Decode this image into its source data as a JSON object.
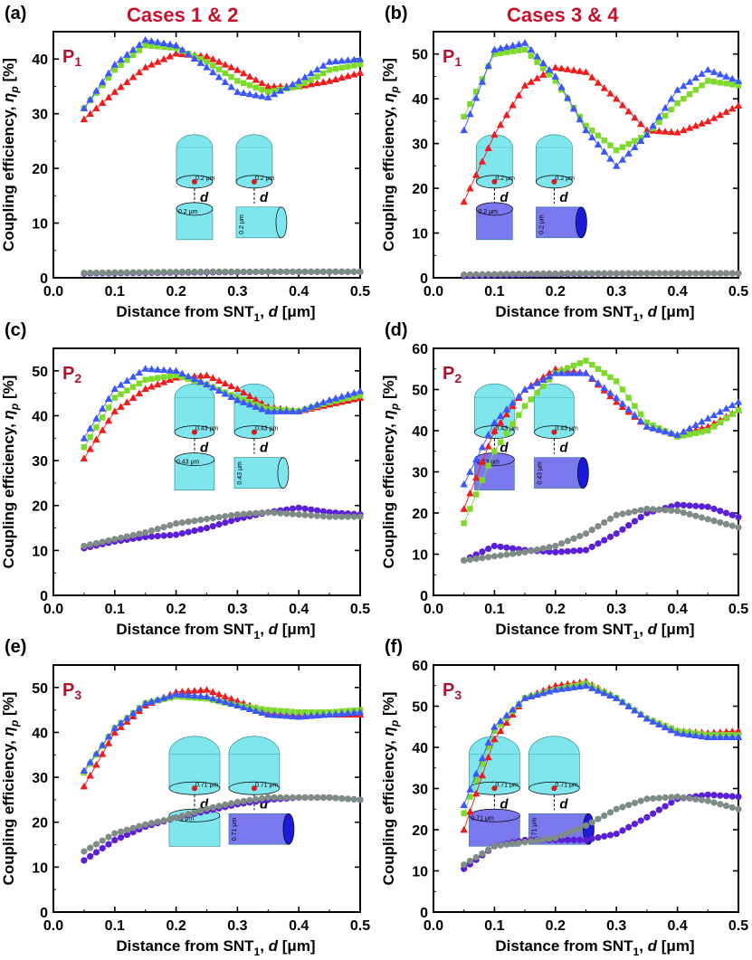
{
  "column_titles": [
    "Cases 1 & 2",
    "Cases 3 & 4"
  ],
  "colors": {
    "red": "#ee1c1c",
    "green": "#7dda2a",
    "blue": "#3a56ff",
    "purple": "#5a1fd6",
    "gray": "#7f8c86",
    "cyan": "#7fe6ee",
    "darkblue": "#1a1ad8",
    "lightblue": "#7a78ee",
    "panel_text": "#b0122c"
  },
  "chart_data": [
    {
      "panel": "(a)",
      "plabel": "P",
      "psub": "1",
      "type": "scatter",
      "xlabel": "Distance from SNT",
      "xlabel_sub": "1",
      "xlabel_var": "d",
      "xlabel_unit": "[μm]",
      "ylabel": "Coupling efficiency, ",
      "ylabel_var": "η",
      "ylabel_sub": "p",
      "ylabel_unit": " [%]",
      "xlim": [
        0.0,
        0.5
      ],
      "ylim": [
        0,
        45
      ],
      "xticks": [
        "0.0",
        "0.1",
        "0.2",
        "0.3",
        "0.4",
        "0.5"
      ],
      "yticks": [
        0,
        10,
        20,
        30,
        40
      ],
      "series": [
        {
          "name": "red",
          "marker": "triangle",
          "xs": [
            0.05,
            0.1,
            0.15,
            0.2,
            0.25,
            0.3,
            0.35,
            0.4,
            0.45,
            0.5
          ],
          "ys": [
            29,
            34,
            38.5,
            41,
            40.5,
            38,
            35,
            35,
            36,
            37.5
          ]
        },
        {
          "name": "green",
          "marker": "square",
          "xs": [
            0.05,
            0.1,
            0.15,
            0.2,
            0.25,
            0.3,
            0.35,
            0.4,
            0.45,
            0.5
          ],
          "ys": [
            31,
            38,
            42.5,
            42,
            39.5,
            36,
            34,
            35,
            38,
            39
          ]
        },
        {
          "name": "blue",
          "marker": "triangle",
          "xs": [
            0.05,
            0.1,
            0.15,
            0.2,
            0.25,
            0.3,
            0.35,
            0.4,
            0.45,
            0.5
          ],
          "ys": [
            31,
            39,
            43.5,
            42.5,
            38.5,
            34,
            33,
            36,
            39.5,
            40
          ]
        },
        {
          "name": "purple",
          "marker": "circle",
          "xs": [
            0.05,
            0.15,
            0.25,
            0.35,
            0.45,
            0.5
          ],
          "ys": [
            0.8,
            0.9,
            1.0,
            1.1,
            1.1,
            1.1
          ]
        },
        {
          "name": "gray",
          "marker": "circle",
          "xs": [
            0.05,
            0.15,
            0.25,
            0.35,
            0.45,
            0.5
          ],
          "ys": [
            0.9,
            1.0,
            1.1,
            1.1,
            1.1,
            1.1
          ]
        }
      ],
      "inset": {
        "radius_label": "0.2 μm",
        "d_label": "d",
        "bottom_color": "cyan"
      }
    },
    {
      "panel": "(b)",
      "plabel": "P",
      "psub": "1",
      "type": "scatter",
      "xlabel": "Distance from SNT",
      "xlabel_sub": "1",
      "xlabel_var": "d",
      "xlabel_unit": "[μm]",
      "ylabel": "Coupling efficiency, ",
      "ylabel_var": "η",
      "ylabel_sub": "p",
      "ylabel_unit": " [%]",
      "xlim": [
        0.0,
        0.5
      ],
      "ylim": [
        0,
        55
      ],
      "xticks": [
        "0.0",
        "0.1",
        "0.2",
        "0.3",
        "0.4",
        "0.5"
      ],
      "yticks": [
        0,
        10,
        20,
        30,
        40,
        50
      ],
      "series": [
        {
          "name": "red",
          "marker": "triangle",
          "xs": [
            0.05,
            0.1,
            0.15,
            0.2,
            0.25,
            0.3,
            0.35,
            0.4,
            0.45,
            0.5
          ],
          "ys": [
            17,
            32,
            43,
            47,
            46,
            40,
            33,
            32.5,
            35,
            38.5
          ]
        },
        {
          "name": "green",
          "marker": "square",
          "xs": [
            0.05,
            0.1,
            0.15,
            0.2,
            0.25,
            0.3,
            0.35,
            0.4,
            0.45,
            0.5
          ],
          "ys": [
            36,
            50,
            51,
            44,
            34,
            28.5,
            32,
            39,
            44,
            43
          ]
        },
        {
          "name": "blue",
          "marker": "triangle",
          "xs": [
            0.05,
            0.1,
            0.15,
            0.2,
            0.25,
            0.3,
            0.35,
            0.4,
            0.45,
            0.5
          ],
          "ys": [
            33,
            51,
            52.5,
            45,
            33,
            25,
            32,
            42,
            46.5,
            44
          ]
        },
        {
          "name": "purple",
          "marker": "circle",
          "xs": [
            0.05,
            0.15,
            0.25,
            0.35,
            0.45,
            0.5
          ],
          "ys": [
            0.4,
            0.7,
            0.9,
            1.0,
            1.0,
            1.0
          ]
        },
        {
          "name": "gray",
          "marker": "circle",
          "xs": [
            0.05,
            0.15,
            0.25,
            0.35,
            0.45,
            0.5
          ],
          "ys": [
            0.7,
            0.9,
            1.0,
            1.0,
            1.0,
            1.0
          ]
        }
      ],
      "inset": {
        "radius_label": "0.2 μm",
        "d_label": "d",
        "bottom_color": "lightblue"
      }
    },
    {
      "panel": "(c)",
      "plabel": "P",
      "psub": "2",
      "type": "scatter",
      "xlabel": "Distance from SNT",
      "xlabel_sub": "1",
      "xlabel_var": "d",
      "xlabel_unit": "[μm]",
      "ylabel": "Coupling efficiency, ",
      "ylabel_var": "η",
      "ylabel_sub": "p",
      "ylabel_unit": " [%]",
      "xlim": [
        0.0,
        0.5
      ],
      "ylim": [
        0,
        55
      ],
      "xticks": [
        "0.0",
        "0.1",
        "0.2",
        "0.3",
        "0.4",
        "0.5"
      ],
      "yticks": [
        0,
        10,
        20,
        30,
        40,
        50
      ],
      "series": [
        {
          "name": "red",
          "marker": "triangle",
          "xs": [
            0.05,
            0.1,
            0.15,
            0.2,
            0.25,
            0.3,
            0.35,
            0.4,
            0.45,
            0.5
          ],
          "ys": [
            30.5,
            41,
            46,
            48.5,
            49,
            46,
            42,
            41,
            42.5,
            44
          ]
        },
        {
          "name": "green",
          "marker": "square",
          "xs": [
            0.05,
            0.1,
            0.15,
            0.2,
            0.25,
            0.3,
            0.35,
            0.4,
            0.45,
            0.5
          ],
          "ys": [
            33,
            44,
            48,
            49,
            47,
            44,
            41.5,
            41,
            43,
            44.5
          ]
        },
        {
          "name": "blue",
          "marker": "triangle",
          "xs": [
            0.05,
            0.1,
            0.15,
            0.2,
            0.25,
            0.3,
            0.35,
            0.4,
            0.45,
            0.5
          ],
          "ys": [
            35,
            46,
            50.5,
            50,
            47,
            43.5,
            41,
            41,
            43.5,
            45.5
          ]
        },
        {
          "name": "purple",
          "marker": "circle",
          "xs": [
            0.05,
            0.1,
            0.15,
            0.2,
            0.25,
            0.3,
            0.35,
            0.4,
            0.45,
            0.5
          ],
          "ys": [
            10.5,
            12,
            13,
            13.5,
            15,
            17,
            18.5,
            19.5,
            18.5,
            18
          ]
        },
        {
          "name": "gray",
          "marker": "circle",
          "xs": [
            0.05,
            0.1,
            0.15,
            0.2,
            0.25,
            0.3,
            0.35,
            0.4,
            0.45,
            0.5
          ],
          "ys": [
            11,
            12.5,
            14,
            16,
            17,
            18,
            18.5,
            18,
            17.5,
            17.5
          ]
        }
      ],
      "inset": {
        "radius_label": "0.43 μm",
        "d_label": "d",
        "bottom_color": "cyan"
      }
    },
    {
      "panel": "(d)",
      "plabel": "P",
      "psub": "2",
      "type": "scatter",
      "xlabel": "Distance from SNT",
      "xlabel_sub": "1",
      "xlabel_var": "d",
      "xlabel_unit": "[μm]",
      "ylabel": "Coupling efficiency, ",
      "ylabel_var": "η",
      "ylabel_sub": "p",
      "ylabel_unit": " [%]",
      "xlim": [
        0.0,
        0.5
      ],
      "ylim": [
        0,
        60
      ],
      "xticks": [
        "0.0",
        "0.1",
        "0.2",
        "0.3",
        "0.4",
        "0.5"
      ],
      "yticks": [
        0,
        10,
        20,
        30,
        40,
        50,
        60
      ],
      "series": [
        {
          "name": "red",
          "marker": "triangle",
          "xs": [
            0.05,
            0.1,
            0.15,
            0.2,
            0.25,
            0.3,
            0.35,
            0.4,
            0.45,
            0.5
          ],
          "ys": [
            21,
            40,
            50,
            55,
            54,
            47,
            41,
            39,
            41,
            45
          ]
        },
        {
          "name": "green",
          "marker": "square",
          "xs": [
            0.05,
            0.1,
            0.15,
            0.2,
            0.25,
            0.3,
            0.35,
            0.4,
            0.45,
            0.5
          ],
          "ys": [
            17.5,
            35,
            46,
            54,
            57,
            52,
            42,
            38.5,
            40,
            45
          ]
        },
        {
          "name": "blue",
          "marker": "triangle",
          "xs": [
            0.05,
            0.1,
            0.15,
            0.2,
            0.25,
            0.3,
            0.35,
            0.4,
            0.45,
            0.5
          ],
          "ys": [
            27,
            42,
            50,
            54,
            54,
            48,
            41,
            39,
            43,
            47
          ]
        },
        {
          "name": "purple",
          "marker": "circle",
          "xs": [
            0.05,
            0.1,
            0.15,
            0.2,
            0.25,
            0.3,
            0.35,
            0.4,
            0.45,
            0.5
          ],
          "ys": [
            8.5,
            12,
            11,
            10.5,
            11,
            15,
            20,
            22,
            21.5,
            19
          ]
        },
        {
          "name": "gray",
          "marker": "circle",
          "xs": [
            0.05,
            0.1,
            0.15,
            0.2,
            0.25,
            0.3,
            0.35,
            0.4,
            0.45,
            0.5
          ],
          "ys": [
            8.5,
            9.5,
            10.5,
            12,
            15,
            19.5,
            21,
            20.5,
            18.5,
            16.5
          ]
        }
      ],
      "inset": {
        "radius_label": "0.43 μm",
        "d_label": "d",
        "bottom_color": "lightblue"
      }
    },
    {
      "panel": "(e)",
      "plabel": "P",
      "psub": "3",
      "type": "scatter",
      "xlabel": "Distance from SNT",
      "xlabel_sub": "1",
      "xlabel_var": "d",
      "xlabel_unit": "[μm]",
      "ylabel": "Coupling efficiency, ",
      "ylabel_var": "η",
      "ylabel_sub": "p",
      "ylabel_unit": " [%]",
      "xlim": [
        0.0,
        0.5
      ],
      "ylim": [
        0,
        55
      ],
      "xticks": [
        "0.0",
        "0.1",
        "0.2",
        "0.3",
        "0.4",
        "0.5"
      ],
      "yticks": [
        0,
        10,
        20,
        30,
        40,
        50
      ],
      "series": [
        {
          "name": "red",
          "marker": "triangle",
          "xs": [
            0.05,
            0.1,
            0.15,
            0.2,
            0.25,
            0.3,
            0.35,
            0.4,
            0.45,
            0.5
          ],
          "ys": [
            28,
            40,
            46,
            49,
            49.5,
            47,
            44.5,
            44,
            44,
            44
          ]
        },
        {
          "name": "green",
          "marker": "square",
          "xs": [
            0.05,
            0.1,
            0.15,
            0.2,
            0.25,
            0.3,
            0.35,
            0.4,
            0.45,
            0.5
          ],
          "ys": [
            31,
            41,
            46.5,
            48,
            47.5,
            46,
            45,
            44.5,
            44.5,
            45
          ]
        },
        {
          "name": "blue",
          "marker": "triangle",
          "xs": [
            0.05,
            0.1,
            0.15,
            0.2,
            0.25,
            0.3,
            0.35,
            0.4,
            0.45,
            0.5
          ],
          "ys": [
            31.5,
            41,
            46.5,
            48.5,
            48,
            46,
            44,
            43.5,
            44,
            44.5
          ]
        },
        {
          "name": "purple",
          "marker": "circle",
          "xs": [
            0.05,
            0.1,
            0.15,
            0.2,
            0.25,
            0.3,
            0.35,
            0.4,
            0.45,
            0.5
          ],
          "ys": [
            11.5,
            16,
            19,
            21,
            22.5,
            24,
            25,
            25.5,
            25.5,
            25
          ]
        },
        {
          "name": "gray",
          "marker": "circle",
          "xs": [
            0.05,
            0.1,
            0.15,
            0.2,
            0.25,
            0.3,
            0.35,
            0.4,
            0.45,
            0.5
          ],
          "ys": [
            13.5,
            17.5,
            19.5,
            21,
            23,
            24.5,
            25.5,
            25.5,
            25.5,
            25
          ]
        }
      ],
      "inset": {
        "radius_label": "0.71 μm",
        "d_label": "d",
        "bottom_color": "darkblue"
      }
    },
    {
      "panel": "(f)",
      "plabel": "P",
      "psub": "3",
      "type": "scatter",
      "xlabel": "Distance from SNT",
      "xlabel_sub": "1",
      "xlabel_var": "d",
      "xlabel_unit": "[μm]",
      "ylabel": "Coupling efficiency, ",
      "ylabel_var": "η",
      "ylabel_sub": "p",
      "ylabel_unit": " [%]",
      "xlim": [
        0.0,
        0.5
      ],
      "ylim": [
        0,
        60
      ],
      "xticks": [
        "0.0",
        "0.1",
        "0.2",
        "0.3",
        "0.4",
        "0.5"
      ],
      "yticks": [
        0,
        10,
        20,
        30,
        40,
        50,
        60
      ],
      "series": [
        {
          "name": "red",
          "marker": "triangle",
          "xs": [
            0.05,
            0.1,
            0.15,
            0.2,
            0.25,
            0.3,
            0.35,
            0.4,
            0.45,
            0.5
          ],
          "ys": [
            20,
            42,
            52,
            55,
            56,
            52,
            47,
            44,
            43.5,
            44
          ]
        },
        {
          "name": "green",
          "marker": "square",
          "xs": [
            0.05,
            0.1,
            0.15,
            0.2,
            0.25,
            0.3,
            0.35,
            0.4,
            0.45,
            0.5
          ],
          "ys": [
            24,
            44,
            52,
            54,
            55.5,
            52,
            47,
            44,
            43,
            43
          ]
        },
        {
          "name": "blue",
          "marker": "triangle",
          "xs": [
            0.05,
            0.1,
            0.15,
            0.2,
            0.25,
            0.3,
            0.35,
            0.4,
            0.45,
            0.5
          ],
          "ys": [
            26,
            45,
            52,
            54,
            55,
            52,
            47,
            43.5,
            42.5,
            42.5
          ]
        },
        {
          "name": "purple",
          "marker": "circle",
          "xs": [
            0.05,
            0.1,
            0.15,
            0.2,
            0.25,
            0.3,
            0.35,
            0.4,
            0.45,
            0.5
          ],
          "ys": [
            10.5,
            16,
            17.5,
            17.5,
            17.5,
            19,
            23,
            27.5,
            28.5,
            28
          ]
        },
        {
          "name": "gray",
          "marker": "circle",
          "xs": [
            0.05,
            0.1,
            0.15,
            0.2,
            0.25,
            0.3,
            0.35,
            0.4,
            0.45,
            0.5
          ],
          "ys": [
            11.5,
            16,
            17,
            18,
            21,
            25,
            27.5,
            28,
            27,
            25
          ]
        }
      ],
      "inset": {
        "radius_label": "0.71 μm",
        "d_label": "d",
        "bottom_color": "lightblue"
      }
    }
  ]
}
